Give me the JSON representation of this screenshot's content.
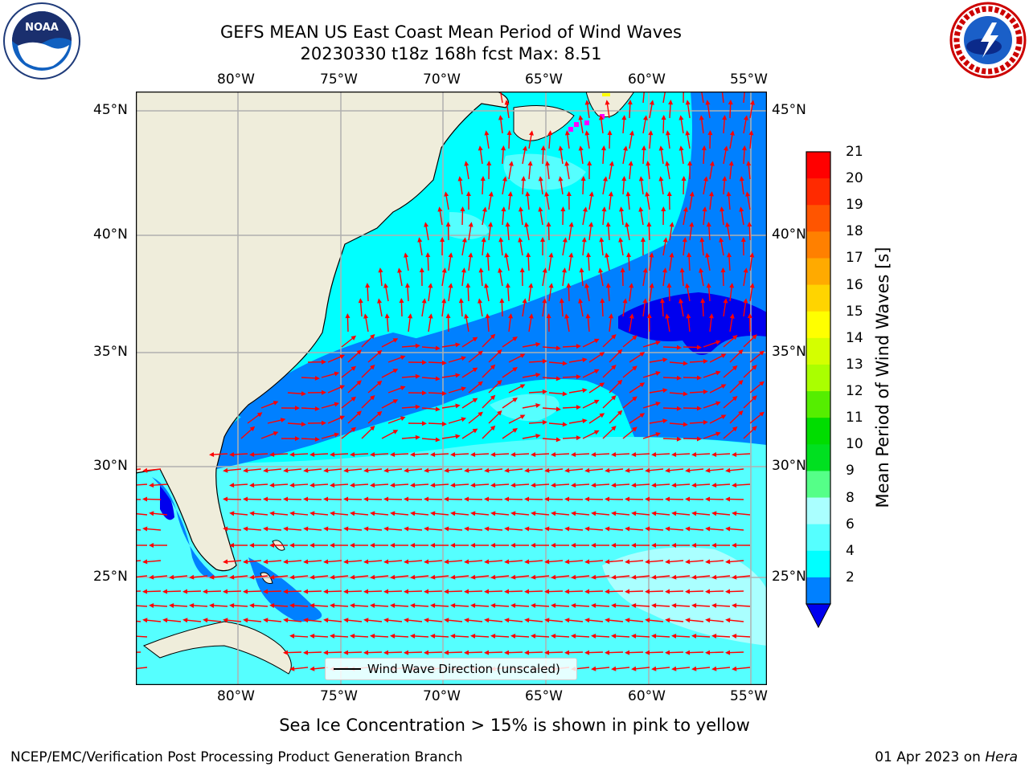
{
  "title_line1": "GEFS MEAN US East Coast Mean Period of Wind Waves",
  "title_line2": "20230330 t18z 168h fcst   Max: 8.51",
  "lon_labels": [
    "80°W",
    "75°W",
    "70°W",
    "65°W",
    "60°W",
    "55°W"
  ],
  "lat_labels": [
    "45°N",
    "40°N",
    "35°N",
    "30°N",
    "25°N"
  ],
  "colorbar": {
    "label": "Mean Period of Wind Waves [s]",
    "ticks": [
      "21",
      "20",
      "19",
      "18",
      "17",
      "16",
      "15",
      "14",
      "13",
      "12",
      "11",
      "10",
      "9",
      "8",
      "6",
      "4",
      "2"
    ],
    "colors": [
      "#ff0000",
      "#ff2a00",
      "#ff5500",
      "#ff8000",
      "#ffaa00",
      "#ffd400",
      "#ffff00",
      "#d4ff00",
      "#aaff00",
      "#55ee00",
      "#00dd00",
      "#00e020",
      "#55ff88",
      "#aaffff",
      "#55ffff",
      "#00ffff",
      "#0080ff"
    ],
    "extend_color": "#0000ee"
  },
  "legend_label": "Wind Wave Direction (unscaled)",
  "caption": "Sea Ice Concentration > 15% is shown in pink to yellow",
  "footer_left": "NCEP/EMC/Verification Post Processing Product Generation Branch",
  "footer_right_date": "01 Apr 2023 on ",
  "footer_right_host": "Hera",
  "logos": {
    "left": "noaa-logo",
    "right": "nws-logo"
  },
  "colors": {
    "land": "#efeddb",
    "arrow": "#ff0000",
    "grid": "#b0b0b0"
  }
}
